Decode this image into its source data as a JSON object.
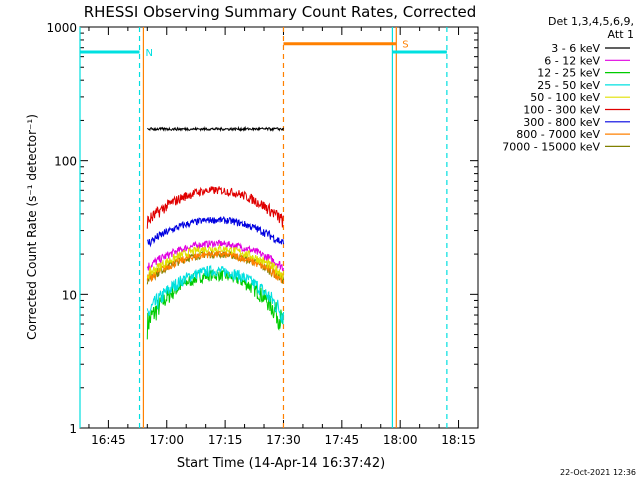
{
  "chart_data": {
    "type": "line",
    "title": "RHESSI Observing Summary Count Rates, Corrected",
    "xlabel": "Start Time (14-Apr-14 16:37:42)",
    "ylabel": "Corrected Count Rate (s⁻¹ detector⁻¹)",
    "yscale": "log",
    "ylim": [
      1,
      1000
    ],
    "xlim": [
      "16:37:42",
      "18:20:00"
    ],
    "yticks": [
      "1",
      "10",
      "100",
      "1000"
    ],
    "xticks": [
      "16:45",
      "17:00",
      "17:15",
      "17:30",
      "17:45",
      "18:00",
      "18:15"
    ],
    "legend_header": [
      "Det 1,3,4,5,6,9,",
      "Att 1"
    ],
    "legend_placement": "right",
    "footer_date": "22-Oct-2021 12:36",
    "data_window": {
      "start": "16:55",
      "end": "17:30"
    },
    "series": [
      {
        "name": "3 - 6 keV",
        "color": "#000000",
        "min": 165,
        "max": 180
      },
      {
        "name": "6 - 12 keV",
        "color": "#e000e0",
        "min": 16,
        "max": 24
      },
      {
        "name": "12 - 25 keV",
        "color": "#00cc00",
        "min": 6,
        "max": 14
      },
      {
        "name": "25 - 50 keV",
        "color": "#00e0e0",
        "min": 7,
        "max": 15
      },
      {
        "name": "50 - 100 keV",
        "color": "#e0e000",
        "min": 14,
        "max": 22
      },
      {
        "name": "100 - 300 keV",
        "color": "#e00000",
        "min": 35,
        "max": 60
      },
      {
        "name": "300 - 800 keV",
        "color": "#0000e0",
        "min": 24,
        "max": 36
      },
      {
        "name": "800 - 7000 keV",
        "color": "#ff8000",
        "min": 13,
        "max": 20
      },
      {
        "name": "7000 - 15000 keV",
        "color": "#808000",
        "min": 13,
        "max": 20
      }
    ],
    "flags": [
      {
        "label": "N",
        "color": "#00e0e0",
        "level": 650,
        "start": "16:37:42",
        "end": "16:53",
        "bounds": [
          "16:37:42",
          "16:53",
          "17:58",
          "18:12"
        ]
      },
      {
        "label": "S",
        "color": "#ff8000",
        "level": 750,
        "start": "17:30",
        "end": "17:59",
        "bounds": [
          "16:54",
          "17:30",
          "17:59"
        ]
      }
    ]
  }
}
